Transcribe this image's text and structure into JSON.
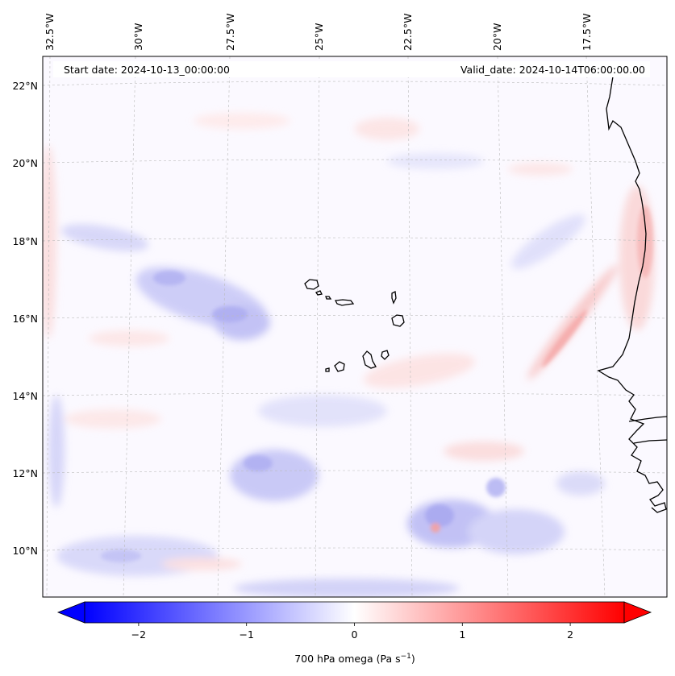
{
  "header": {
    "start_date": "Start date: 2024-10-13_00:00:00",
    "valid_date": "Valid_date: 2024-10-14T06:00:00.00"
  },
  "map": {
    "lon_labels": [
      "32.5°W",
      "30°W",
      "27.5°W",
      "25°W",
      "22.5°W",
      "20°W",
      "17.5°W"
    ],
    "lat_labels": [
      "22°N",
      "20°N",
      "18°N",
      "16°N",
      "14°N",
      "12°N",
      "10°N"
    ],
    "field": "700 hPa omega",
    "gridlines": true,
    "coastline_color": "#000000"
  },
  "colorbar": {
    "label": "700 hPa omega (Pa s",
    "label_sup": "−1",
    "label_close": ")",
    "ticks": [
      "−2",
      "−1",
      "0",
      "1",
      "2"
    ],
    "tick_values": [
      -2,
      -1,
      0,
      1,
      2
    ],
    "vmin": -2.5,
    "vmax": 2.5,
    "extend": "both",
    "colormap": "bwr",
    "color_low": "#0000ff",
    "color_mid": "#ffffff",
    "color_high": "#ff0000"
  }
}
